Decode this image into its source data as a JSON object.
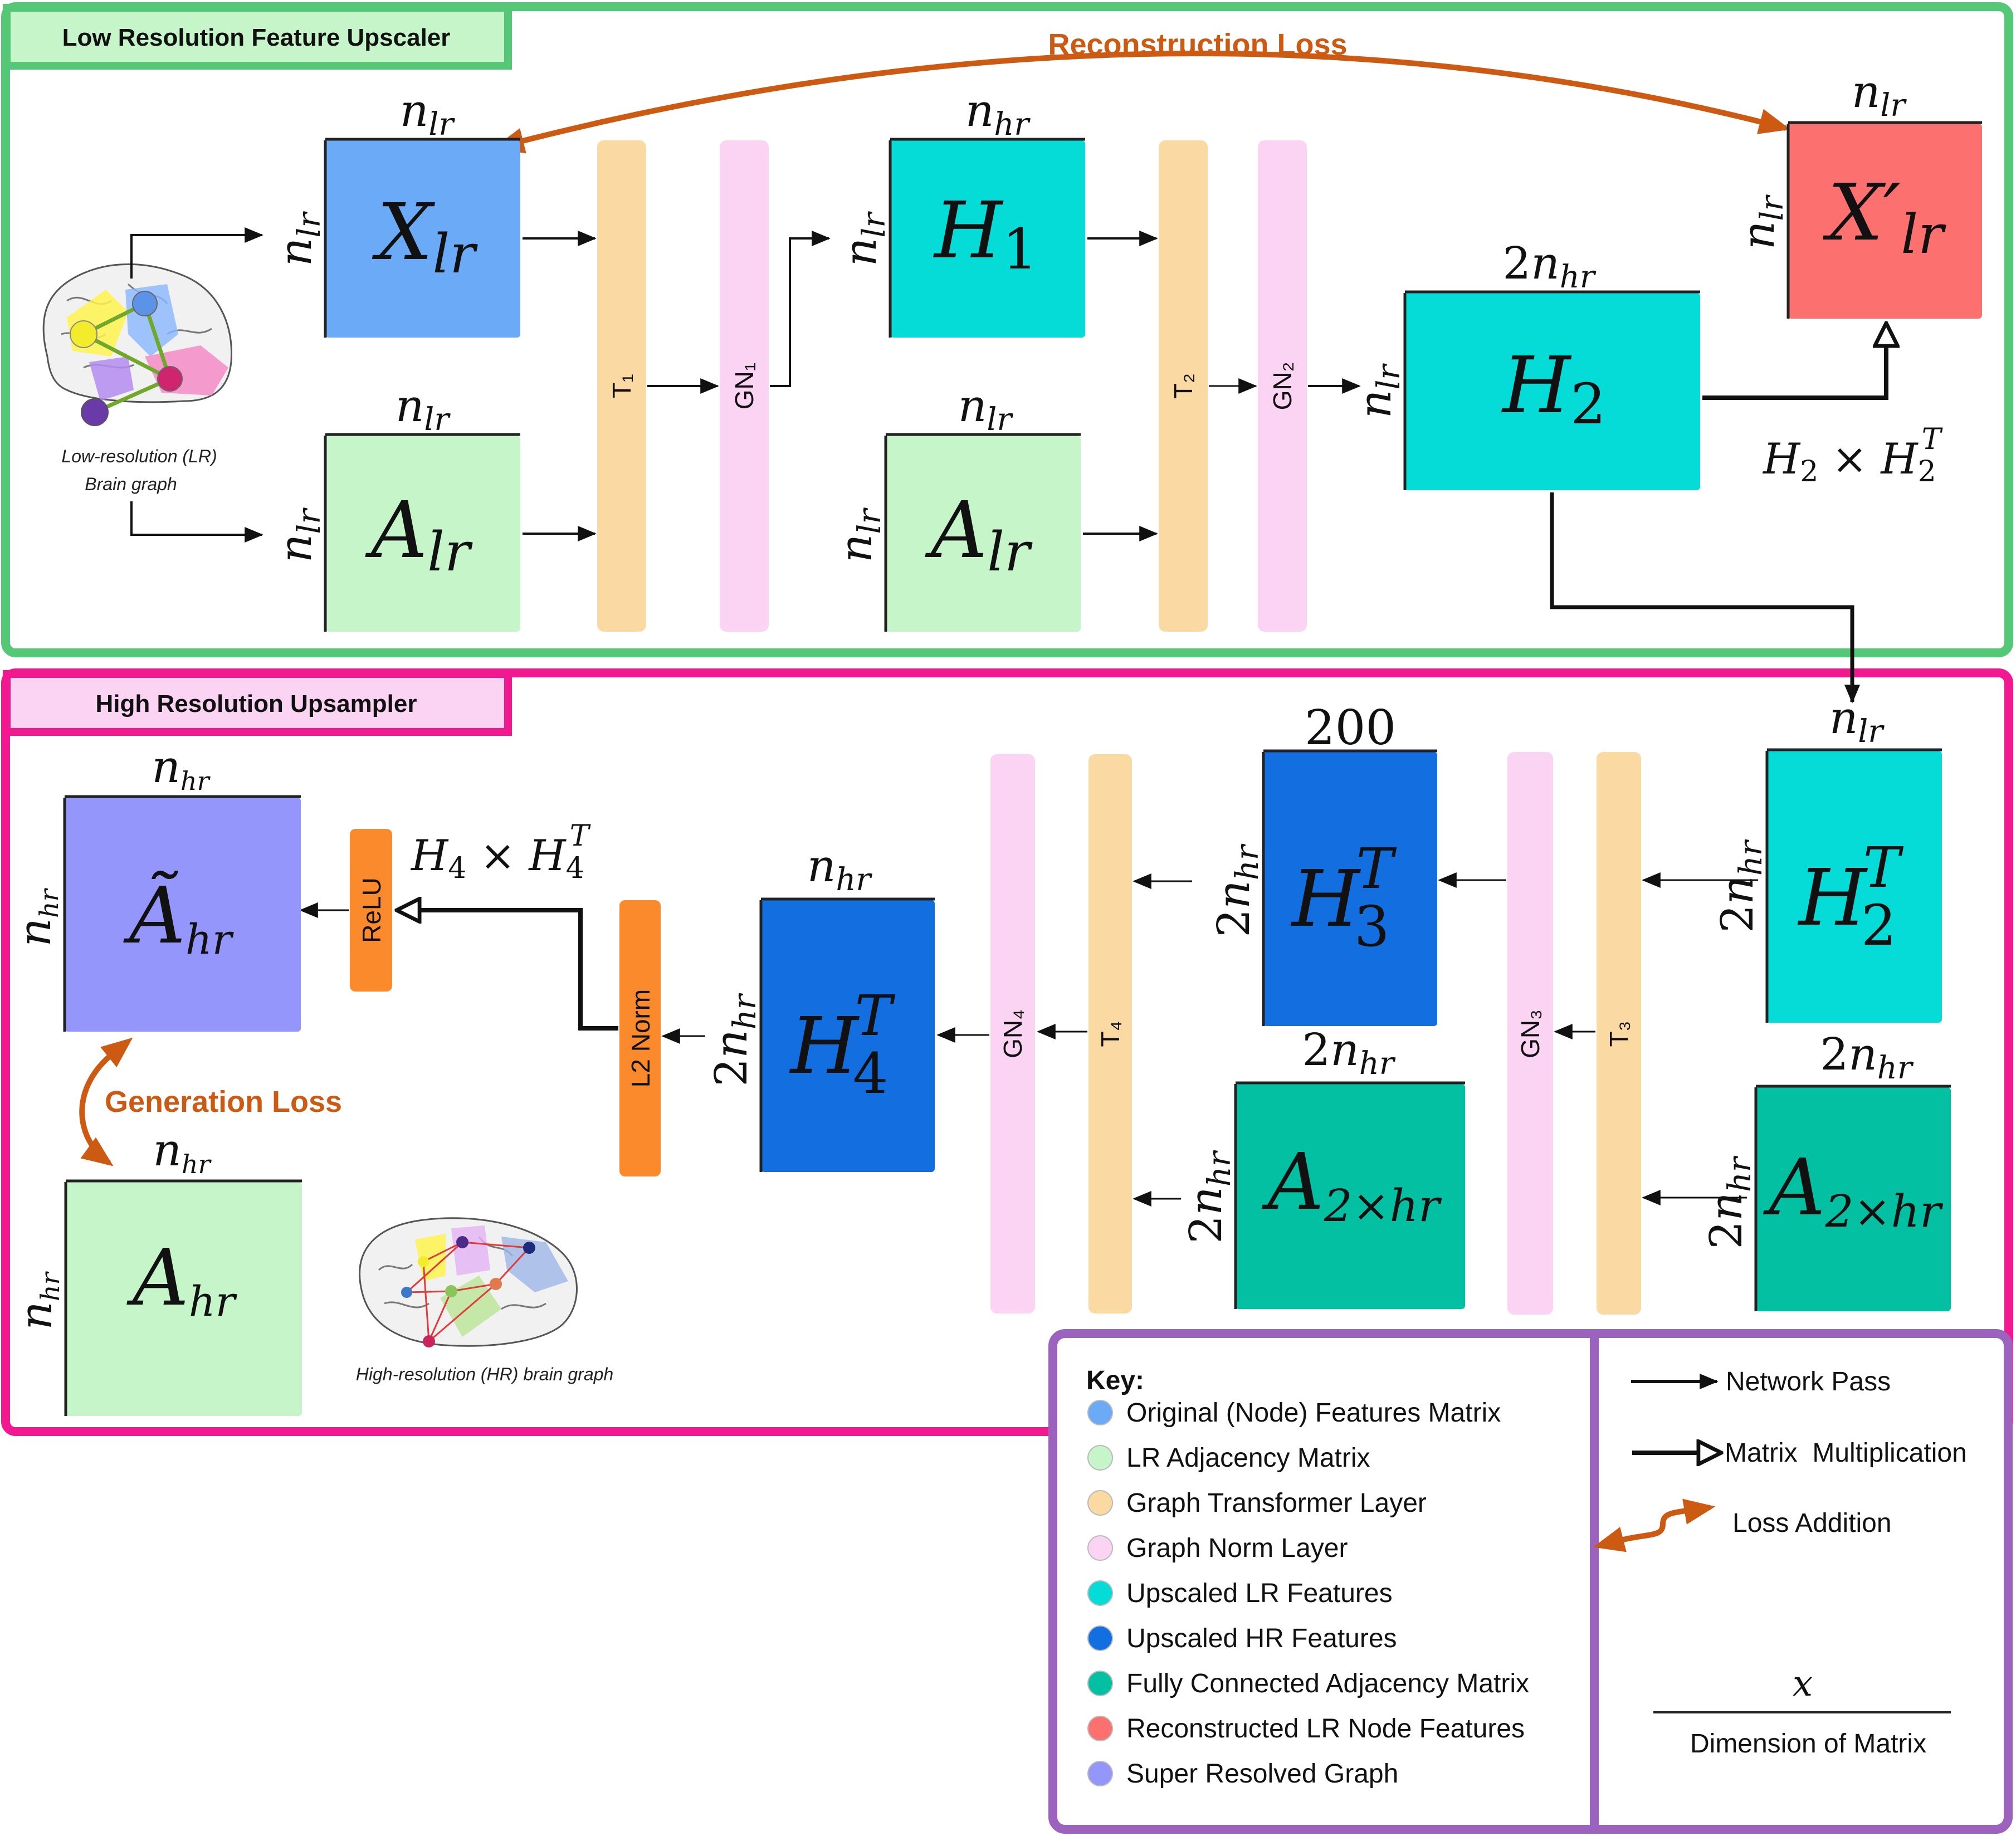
{
  "sections": {
    "low_res_title": "Low Resolution Feature Upscaler",
    "high_res_title": "High Resolution Upsampler"
  },
  "losses": {
    "reconstruction": "Reconstruction Loss",
    "generation": "Generation Loss"
  },
  "brain_captions": {
    "lr_line1": "Low-resolution (LR)",
    "lr_line2": "Brain graph",
    "hr": "High-resolution (HR) brain graph"
  },
  "layers": {
    "t1": "T₁",
    "gn1": "GN₁",
    "t2": "T₂",
    "gn2": "GN₂",
    "t3": "T₃",
    "gn3": "GN₃",
    "t4": "T₄",
    "gn4": "GN₄",
    "relu": "ReLU",
    "l2norm": "L2 Norm"
  },
  "matrices": {
    "x_lr": "X_lr",
    "a_lr": "A_lr",
    "h1": "H_1",
    "h2": "H_2",
    "x_prime_lr": "X'_lr",
    "h2_t": "H_2^T",
    "h3_t": "H_3^T",
    "h4_t": "H_4^T",
    "a_2xhr": "A_2×hr",
    "a_tilde_hr": "Ã_hr",
    "a_hr": "A_hr"
  },
  "dimensions": {
    "n_lr": "n_lr",
    "n_hr": "n_hr",
    "two_n_hr": "2n_hr",
    "two_hundred": "200"
  },
  "operations": {
    "h2_product": "H₂ × H₂ᵀ",
    "h4_product": "H₄ × H₄ᵀ"
  },
  "key": {
    "title": "Key:",
    "items": [
      {
        "label": "Original (Node) Features Matrix",
        "color": "#6aaaf7"
      },
      {
        "label": "LR Adjacency Matrix",
        "color": "#c5f5c9"
      },
      {
        "label": "Graph Transformer Layer",
        "color": "#fbd9a3"
      },
      {
        "label": "Graph Norm Layer",
        "color": "#fbd3f3"
      },
      {
        "label": "Upscaled LR Features",
        "color": "#05dcd8"
      },
      {
        "label": "Upscaled HR Features",
        "color": "#136fe0"
      },
      {
        "label": "Fully Connected Adjacency Matrix",
        "color": "#04c0a2"
      },
      {
        "label": "Reconstructed LR Node Features",
        "color": "#fd7070"
      },
      {
        "label": "Super Resolved Graph",
        "color": "#9596fb"
      }
    ],
    "network_pass": "Network Pass",
    "matrix_mult": "Matrix  Multiplication",
    "loss_addition": "Loss Addition",
    "dim_symbol": "x",
    "dim_caption": "Dimension of Matrix"
  },
  "colors": {
    "green_frame": "#55c878",
    "pink_frame": "#f2188f",
    "purple_frame": "#9b62be",
    "loss_orange": "#cc5a12"
  }
}
